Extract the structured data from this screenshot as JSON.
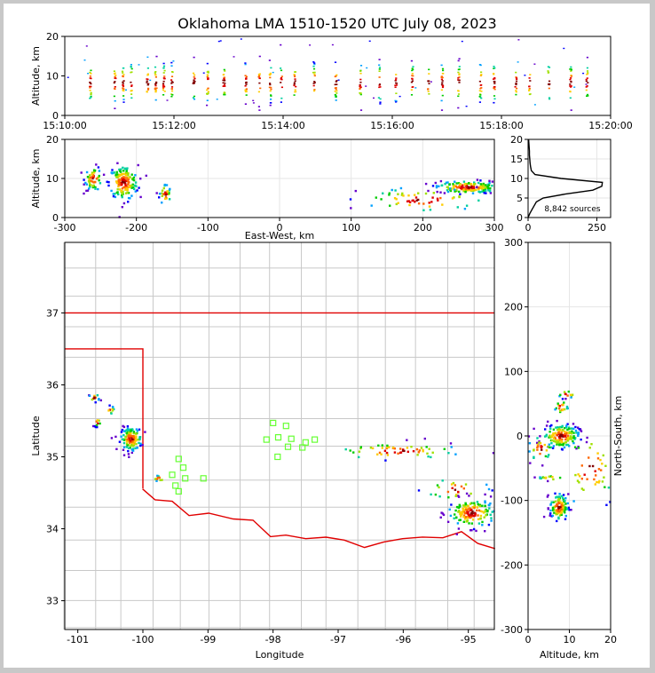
{
  "title": "Oklahoma LMA 1510-1520 UTC July 08, 2023",
  "colors": {
    "state_border": "#e00000",
    "county_lines": "#c8c8c8",
    "stations": "#66ff33",
    "frame_bg": "#c8c8c8",
    "palette": [
      "#6600cc",
      "#0000ff",
      "#00a0ff",
      "#00d0a0",
      "#00cc00",
      "#a0e000",
      "#ffcc00",
      "#ff6600",
      "#e00000",
      "#800000"
    ]
  },
  "chart_data": [
    {
      "id": "time-height",
      "type": "scatter",
      "xlabel": "",
      "ylabel": "Altitude, km",
      "xlim": [
        "15:10:00",
        "15:20:00"
      ],
      "ylim": [
        0,
        20
      ],
      "x_ticks": [
        "15:10:00",
        "15:12:00",
        "15:14:00",
        "15:16:00",
        "15:18:00",
        "15:20:00"
      ],
      "y_ticks": [
        0,
        10,
        20
      ],
      "bursts_minutes": [
        0.45,
        0.9,
        1.05,
        1.2,
        1.5,
        1.65,
        1.8,
        1.95,
        2.35,
        2.6,
        2.9,
        3.3,
        3.55,
        3.75,
        3.95,
        4.2,
        4.55,
        4.95,
        5.4,
        5.75,
        6.05,
        6.35,
        6.65,
        6.9,
        7.2,
        7.6,
        7.85,
        8.25,
        8.5,
        8.85,
        9.25,
        9.55
      ]
    },
    {
      "id": "east-west-altitude",
      "type": "scatter",
      "xlabel": "East-West, km",
      "ylabel": "Altitude, km",
      "xlim": [
        -300,
        300
      ],
      "ylim": [
        0,
        20
      ],
      "x_ticks": [
        -300,
        -200,
        -100,
        0,
        100,
        200,
        300
      ],
      "y_ticks": [
        0,
        10,
        20
      ],
      "clusters": [
        {
          "x": -260,
          "y": 10,
          "sx": 6,
          "sy": 1.5,
          "n": 60
        },
        {
          "x": -218,
          "y": 9,
          "sx": 10,
          "sy": 2.2,
          "n": 160
        },
        {
          "x": -160,
          "y": 6,
          "sx": 4,
          "sy": 1.3,
          "n": 30
        },
        {
          "x": 262,
          "y": 7.8,
          "sx": 22,
          "sy": 0.8,
          "n": 170
        },
        {
          "x": 200,
          "y": 4.5,
          "sx": 45,
          "sy": 1.6,
          "n": 60
        }
      ]
    },
    {
      "id": "altitude-histogram",
      "type": "line",
      "xlabel": "",
      "ylabel": "",
      "xlim": [
        0,
        300
      ],
      "ylim": [
        0,
        20
      ],
      "x_ticks": [
        0,
        250
      ],
      "y_ticks": [
        0,
        5,
        10,
        15,
        20
      ],
      "annotation": "8,842 sources",
      "series": [
        {
          "altitude": [
            0,
            1,
            2,
            3,
            4,
            5,
            6,
            7,
            8,
            9,
            10,
            11,
            12,
            13,
            14,
            15,
            16,
            17,
            18,
            19,
            20
          ],
          "count": [
            0,
            6,
            14,
            22,
            30,
            55,
            135,
            235,
            268,
            270,
            120,
            25,
            12,
            9,
            7,
            6,
            5,
            5,
            4,
            3,
            2
          ]
        }
      ]
    },
    {
      "id": "plan-view",
      "type": "scatter",
      "xlabel": "Longitude",
      "ylabel": "Latitude",
      "xlim": [
        -101.2,
        -94.6
      ],
      "ylim": [
        32.6,
        37.98
      ],
      "x_ticks": [
        -101,
        -100,
        -99,
        -98,
        -97,
        -96,
        -95
      ],
      "y_ticks": [
        33,
        34,
        35,
        36,
        37
      ],
      "clusters": [
        {
          "x": -100.18,
          "y": 35.25,
          "sx": 0.08,
          "sy": 0.08,
          "n": 140
        },
        {
          "x": -100.75,
          "y": 35.82,
          "sx": 0.04,
          "sy": 0.03,
          "n": 14
        },
        {
          "x": -100.7,
          "y": 35.48,
          "sx": 0.03,
          "sy": 0.03,
          "n": 10
        },
        {
          "x": -100.5,
          "y": 35.65,
          "sx": 0.03,
          "sy": 0.03,
          "n": 10
        },
        {
          "x": -99.75,
          "y": 34.7,
          "sx": 0.05,
          "sy": 0.02,
          "n": 10
        },
        {
          "x": -94.95,
          "y": 34.22,
          "sx": 0.18,
          "sy": 0.1,
          "n": 160
        },
        {
          "x": -96.1,
          "y": 35.08,
          "sx": 0.5,
          "sy": 0.06,
          "n": 60
        },
        {
          "x": -95.2,
          "y": 34.55,
          "sx": 0.25,
          "sy": 0.08,
          "n": 25
        }
      ],
      "stations": [
        {
          "lon": -99.45,
          "lat": 34.97
        },
        {
          "lon": -99.38,
          "lat": 34.85
        },
        {
          "lon": -99.55,
          "lat": 34.75
        },
        {
          "lon": -99.35,
          "lat": 34.7
        },
        {
          "lon": -99.5,
          "lat": 34.6
        },
        {
          "lon": -99.45,
          "lat": 34.52
        },
        {
          "lon": -99.07,
          "lat": 34.7
        },
        {
          "lon": -98.0,
          "lat": 35.47
        },
        {
          "lon": -97.8,
          "lat": 35.43
        },
        {
          "lon": -98.1,
          "lat": 35.24
        },
        {
          "lon": -97.92,
          "lat": 35.27
        },
        {
          "lon": -97.72,
          "lat": 35.25
        },
        {
          "lon": -97.5,
          "lat": 35.2
        },
        {
          "lon": -97.36,
          "lat": 35.24
        },
        {
          "lon": -97.77,
          "lat": 35.14
        },
        {
          "lon": -97.55,
          "lat": 35.13
        },
        {
          "lon": -97.93,
          "lat": 35.0
        }
      ]
    },
    {
      "id": "north-south-altitude",
      "type": "scatter",
      "xlabel": "Altitude, km",
      "ylabel": "North-South, km",
      "xlim": [
        0,
        20
      ],
      "ylim": [
        -300,
        300
      ],
      "x_ticks": [
        0,
        10,
        20
      ],
      "y_ticks": [
        -300,
        -200,
        -100,
        0,
        100,
        200,
        300
      ],
      "clusters": [
        {
          "x": 8,
          "y": 0,
          "sx": 2.2,
          "sy": 9,
          "n": 170
        },
        {
          "x": 7.5,
          "y": -110,
          "sx": 1.1,
          "sy": 10,
          "n": 110
        },
        {
          "x": 9.5,
          "y": 65,
          "sx": 1.2,
          "sy": 3,
          "n": 12
        },
        {
          "x": 8,
          "y": 45,
          "sx": 0.8,
          "sy": 6,
          "n": 20
        },
        {
          "x": 5.5,
          "y": -65,
          "sx": 1.5,
          "sy": 2,
          "n": 14
        },
        {
          "x": 15,
          "y": -50,
          "sx": 3.5,
          "sy": 30,
          "n": 40
        },
        {
          "x": 3,
          "y": -20,
          "sx": 1.5,
          "sy": 10,
          "n": 30
        }
      ]
    }
  ]
}
